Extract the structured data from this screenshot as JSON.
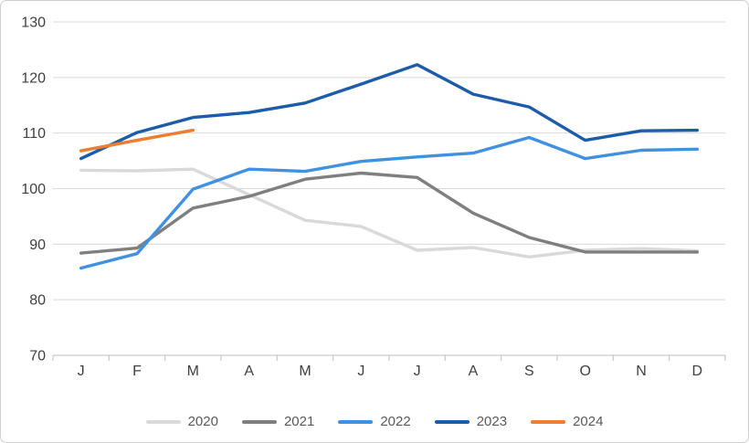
{
  "chart_data": {
    "type": "line",
    "title": "",
    "xlabel": "",
    "ylabel": "",
    "categories": [
      "J",
      "F",
      "M",
      "A",
      "M",
      "J",
      "J",
      "A",
      "S",
      "O",
      "N",
      "D"
    ],
    "ylim": [
      70,
      130
    ],
    "yticks": [
      130,
      120,
      110,
      100,
      90,
      80,
      70
    ],
    "grid": true,
    "legend_position": "bottom",
    "series": [
      {
        "name": "2020",
        "color": "#D9D9D9",
        "values": [
          103.3,
          103.2,
          103.5,
          98.9,
          94.3,
          93.2,
          88.9,
          89.4,
          87.7,
          88.9,
          89.2,
          88.8
        ]
      },
      {
        "name": "2021",
        "color": "#7F7F7F",
        "values": [
          88.4,
          89.3,
          96.5,
          98.6,
          101.7,
          102.8,
          102.0,
          95.6,
          91.2,
          88.6,
          88.6,
          88.6
        ]
      },
      {
        "name": "2022",
        "color": "#4191E1",
        "values": [
          85.7,
          88.3,
          99.9,
          103.5,
          103.1,
          104.9,
          105.7,
          106.4,
          109.2,
          105.4,
          106.9,
          107.1
        ]
      },
      {
        "name": "2023",
        "color": "#1C5CA8",
        "values": [
          105.4,
          110.1,
          112.8,
          113.7,
          115.4,
          118.8,
          122.3,
          117.0,
          114.7,
          108.7,
          110.4,
          110.5
        ]
      },
      {
        "name": "2024",
        "color": "#ED7D31",
        "values": [
          106.8,
          108.7,
          110.5,
          null,
          null,
          null,
          null,
          null,
          null,
          null,
          null,
          null
        ]
      }
    ],
    "axis_color": "#bfbfbf",
    "gridline_color": "#d9d9d9",
    "label_color": "#404040",
    "legend_text_color": "#595959"
  }
}
